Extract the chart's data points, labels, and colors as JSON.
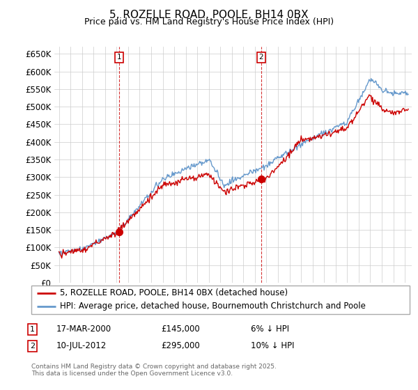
{
  "title": "5, ROZELLE ROAD, POOLE, BH14 0BX",
  "subtitle": "Price paid vs. HM Land Registry's House Price Index (HPI)",
  "legend_line1": "5, ROZELLE ROAD, POOLE, BH14 0BX (detached house)",
  "legend_line2": "HPI: Average price, detached house, Bournemouth Christchurch and Poole",
  "annotation1_date": "17-MAR-2000",
  "annotation1_price": "£145,000",
  "annotation1_note": "6% ↓ HPI",
  "annotation2_date": "10-JUL-2012",
  "annotation2_price": "£295,000",
  "annotation2_note": "10% ↓ HPI",
  "footer": "Contains HM Land Registry data © Crown copyright and database right 2025.\nThis data is licensed under the Open Government Licence v3.0.",
  "price_color": "#cc0000",
  "hpi_color": "#6699cc",
  "ylim": [
    0,
    670000
  ],
  "yticks": [
    0,
    50000,
    100000,
    150000,
    200000,
    250000,
    300000,
    350000,
    400000,
    450000,
    500000,
    550000,
    600000,
    650000
  ],
  "ytick_labels": [
    "£0",
    "£50K",
    "£100K",
    "£150K",
    "£200K",
    "£250K",
    "£300K",
    "£350K",
    "£400K",
    "£450K",
    "£500K",
    "£550K",
    "£600K",
    "£650K"
  ],
  "marker1_year": 2000.21,
  "marker1_value": 145000,
  "marker2_year": 2012.53,
  "marker2_value": 295000,
  "vline1_year": 2000.21,
  "vline2_year": 2012.53
}
